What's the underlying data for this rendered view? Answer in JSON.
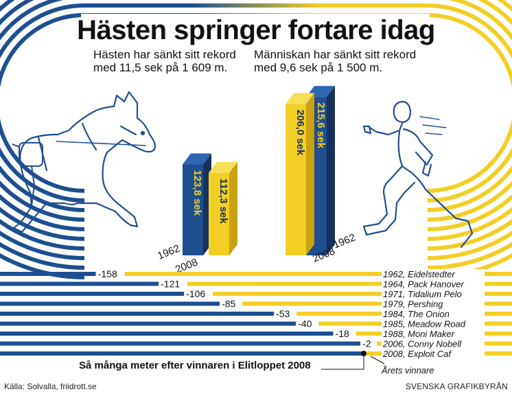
{
  "header": {
    "title": "Hästen springer fortare idag",
    "subtitle_horse": "Hästen har sänkt sitt rekord med 11,5 sek på 1 609 m.",
    "subtitle_human": "Människan har sänkt sitt rekord med 9,6 sek på 1 500 m."
  },
  "footer": {
    "source": "Källa: Solvalla, friidrott.se",
    "credit": "SVENSKA GRAFIKBYRÅN"
  },
  "colors": {
    "blue": "#1d4f91",
    "yellow": "#f3cf26",
    "blue_side": "#16315b",
    "yellow_side": "#caa10f",
    "text": "#111111"
  },
  "icons": [
    "horse-icon",
    "runner-icon"
  ],
  "chart_data": [
    {
      "type": "bar",
      "categories": [
        "1962",
        "2008"
      ],
      "values": [
        123.8,
        112.3
      ],
      "value_labels": [
        "123,8 sek",
        "112,3 sek"
      ],
      "bar_colors": [
        "#1d4f91",
        "#f3cf26"
      ],
      "ylim": [
        0,
        230
      ]
    },
    {
      "type": "bar",
      "categories": [
        "2008",
        "1962"
      ],
      "values": [
        206.0,
        215.6
      ],
      "value_labels": [
        "206,0 sek",
        "215,6 sek"
      ],
      "bar_colors": [
        "#f3cf26",
        "#1d4f91"
      ],
      "ylim": [
        0,
        230
      ]
    },
    {
      "type": "bar",
      "orientation": "horizontal",
      "title": "Så många meter efter vinnaren i Elitloppet 2008",
      "winner_label": "Årets vinnare",
      "xlim": [
        -158,
        0
      ],
      "categories": [
        "1962, Eidelstedter",
        "1964, Pack Hanover",
        "1971, Tidalium Pelo",
        "1979, Pershing",
        "1984, The Onion",
        "1985, Meadow Road",
        "1988, Moni Maker",
        "2006, Conny Nobell",
        "2008, Exploit Caf"
      ],
      "values": [
        -158,
        -121,
        -106,
        -85,
        -53,
        -40,
        -18,
        -2,
        0
      ],
      "value_labels": [
        "-158",
        "-121",
        "-106",
        "-85",
        "-53",
        "-40",
        "-18",
        "-2",
        ""
      ]
    }
  ]
}
